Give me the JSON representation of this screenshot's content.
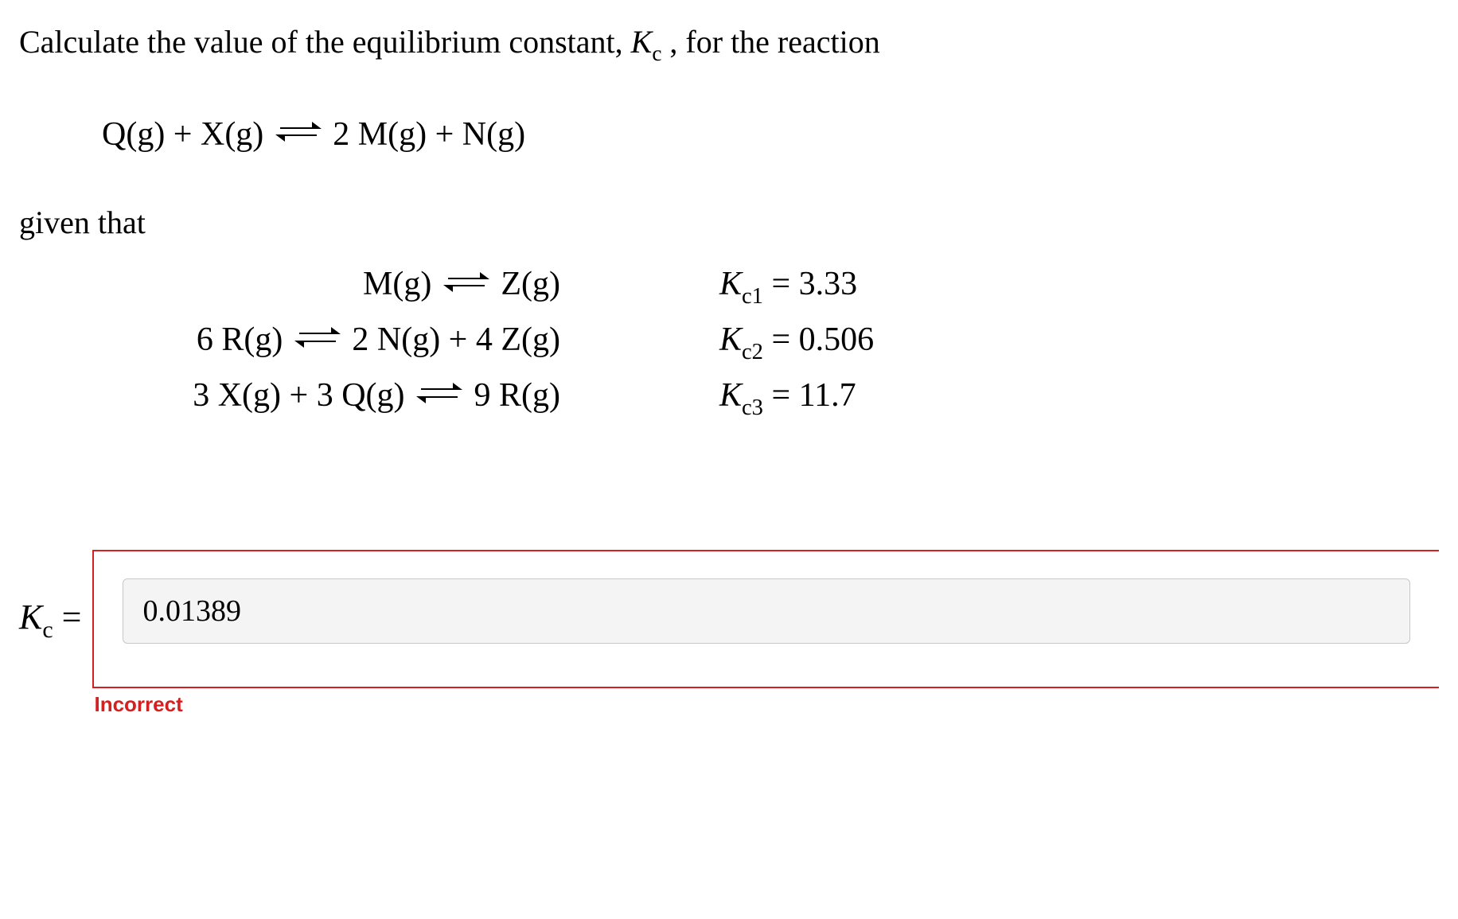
{
  "colors": {
    "text": "#000000",
    "background": "#ffffff",
    "error_border": "#d32020",
    "error_text": "#d32020",
    "input_bg": "#f4f4f4",
    "input_border": "#c8c8c8"
  },
  "typography": {
    "body_family": "Times New Roman",
    "body_size_pt": 30,
    "eq_size_pt": 32,
    "label_family": "Arial",
    "incorrect_size_pt": 20,
    "incorrect_weight": "bold"
  },
  "question": {
    "pre_text": "Calculate the value of the equilibrium constant, ",
    "kc_symbol_letter": "K",
    "kc_symbol_sub": "c",
    "post_text": " , for the reaction",
    "target_reaction": {
      "lhs": "Q(g) + X(g)",
      "rhs": "2 M(g) + N(g)"
    },
    "given_label": "given that"
  },
  "given_reactions": [
    {
      "lhs": "M(g)",
      "rhs": "Z(g)",
      "k_sub": "c1",
      "k_value": "3.33"
    },
    {
      "lhs": "6 R(g)",
      "rhs": "2 N(g) + 4 Z(g)",
      "k_sub": "c2",
      "k_value": "0.506"
    },
    {
      "lhs": "3 X(g) + 3 Q(g)",
      "rhs": "9 R(g)",
      "k_sub": "c3",
      "k_value": "11.7"
    }
  ],
  "answer": {
    "label_letter": "K",
    "label_sub": "c",
    "equals": " =",
    "entered_value": "0.01389",
    "feedback": "Incorrect"
  }
}
